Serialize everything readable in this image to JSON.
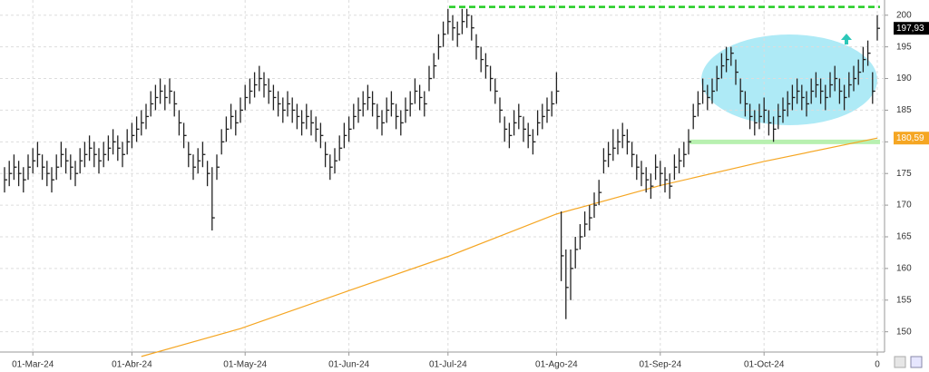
{
  "chart_data": {
    "type": "ohlc",
    "categories": [
      null,
      null,
      null,
      null,
      null,
      null,
      "01-Mar-24",
      null,
      null,
      null,
      null,
      null,
      null,
      null,
      null,
      null,
      null,
      null,
      null,
      null,
      null,
      null,
      null,
      null,
      null,
      null,
      null,
      "01-Abr-24",
      null,
      null,
      null,
      null,
      null,
      null,
      null,
      null,
      null,
      null,
      null,
      null,
      null,
      null,
      null,
      null,
      null,
      null,
      null,
      null,
      null,
      null,
      null,
      "01-May-24",
      null,
      null,
      null,
      null,
      null,
      null,
      null,
      null,
      null,
      null,
      null,
      null,
      null,
      null,
      null,
      null,
      null,
      null,
      null,
      null,
      null,
      "01-Jun-24",
      null,
      null,
      null,
      null,
      null,
      null,
      null,
      null,
      null,
      null,
      null,
      null,
      null,
      null,
      null,
      null,
      null,
      null,
      null,
      null,
      "01-Jul-24",
      null,
      null,
      null,
      null,
      null,
      null,
      null,
      null,
      null,
      null,
      null,
      null,
      null,
      null,
      null,
      null,
      null,
      null,
      null,
      null,
      null,
      null,
      "01-Ago-24",
      null,
      null,
      null,
      null,
      null,
      null,
      null,
      null,
      null,
      null,
      null,
      null,
      null,
      null,
      null,
      null,
      null,
      null,
      null,
      null,
      null,
      "01-Sep-24",
      null,
      null,
      null,
      null,
      null,
      null,
      null,
      null,
      null,
      null,
      null,
      null,
      null,
      null,
      null,
      null,
      null,
      null,
      null,
      null,
      null,
      "01-Oct-24",
      null,
      null,
      null,
      null,
      null,
      null,
      null,
      null,
      null,
      null,
      null,
      null,
      null,
      null,
      null,
      null,
      null,
      null,
      null,
      null,
      null,
      null,
      null,
      "0"
    ],
    "high": [
      176,
      177,
      178,
      177,
      176,
      178,
      179,
      180,
      178,
      177,
      176,
      178,
      180,
      179,
      178,
      177,
      179,
      180,
      181,
      180,
      179,
      180,
      181,
      182,
      181,
      180,
      182,
      183,
      184,
      185,
      186,
      188,
      189,
      190,
      189,
      190,
      188,
      185,
      183,
      180,
      178,
      179,
      180,
      177,
      176,
      178,
      182,
      184,
      186,
      185,
      187,
      189,
      190,
      191,
      192,
      191,
      190,
      189,
      188,
      187,
      188,
      187,
      186,
      185,
      186,
      185,
      184,
      183,
      180,
      178,
      179,
      181,
      183,
      184,
      186,
      187,
      188,
      189,
      188,
      186,
      185,
      187,
      188,
      186,
      185,
      187,
      188,
      190,
      189,
      188,
      192,
      194,
      197,
      199,
      201,
      200,
      199,
      201,
      201,
      200,
      197,
      195,
      194,
      192,
      190,
      187,
      184,
      183,
      185,
      186,
      184,
      183,
      182,
      185,
      186,
      187,
      188,
      191,
      169,
      163,
      163,
      165,
      167,
      169,
      170,
      172,
      174,
      179,
      180,
      182,
      182,
      183,
      182,
      180,
      178,
      177,
      176,
      175,
      178,
      177,
      176,
      175,
      178,
      179,
      180,
      182,
      186,
      188,
      190,
      189,
      190,
      192,
      194,
      195,
      195,
      193,
      190,
      188,
      186,
      185,
      186,
      187,
      185,
      184,
      186,
      187,
      188,
      189,
      190,
      189,
      188,
      190,
      191,
      190,
      189,
      191,
      192,
      190,
      189,
      191,
      192,
      193,
      195,
      196,
      191,
      200
    ],
    "low": [
      172,
      173,
      174,
      173,
      172,
      174,
      175,
      176,
      174,
      173,
      172,
      174,
      176,
      175,
      174,
      173,
      175,
      176,
      177,
      176,
      175,
      176,
      177,
      178,
      177,
      176,
      178,
      179,
      180,
      181,
      182,
      184,
      185,
      186,
      185,
      186,
      184,
      181,
      179,
      176,
      174,
      175,
      176,
      173,
      166,
      174,
      178,
      180,
      182,
      181,
      183,
      185,
      186,
      187,
      188,
      187,
      186,
      185,
      184,
      183,
      184,
      183,
      182,
      181,
      182,
      181,
      180,
      179,
      176,
      174,
      175,
      177,
      179,
      180,
      182,
      183,
      184,
      185,
      184,
      182,
      181,
      183,
      184,
      182,
      181,
      183,
      184,
      186,
      185,
      184,
      188,
      190,
      193,
      195,
      197,
      196,
      195,
      197,
      198,
      196,
      193,
      191,
      190,
      188,
      186,
      183,
      180,
      179,
      181,
      182,
      180,
      179,
      178,
      181,
      182,
      183,
      184,
      186,
      158,
      152,
      155,
      160,
      163,
      165,
      166,
      168,
      170,
      175,
      176,
      177,
      178,
      179,
      178,
      176,
      174,
      173,
      172,
      171,
      174,
      173,
      172,
      171,
      174,
      175,
      176,
      178,
      182,
      184,
      186,
      185,
      186,
      188,
      190,
      191,
      192,
      189,
      186,
      184,
      182,
      181,
      182,
      183,
      181,
      180,
      182,
      183,
      184,
      185,
      186,
      185,
      184,
      186,
      187,
      186,
      185,
      187,
      188,
      186,
      185,
      187,
      188,
      189,
      191,
      192,
      186,
      196
    ],
    "close": [
      174,
      175,
      176,
      175,
      174,
      176,
      177,
      178,
      176,
      175,
      174,
      176,
      178,
      177,
      176,
      175,
      177,
      178,
      179,
      178,
      177,
      178,
      179,
      180,
      179,
      178,
      180,
      181,
      182,
      183,
      184,
      186,
      187,
      188,
      187,
      188,
      186,
      183,
      181,
      178,
      176,
      177,
      178,
      175,
      168,
      176,
      180,
      182,
      184,
      183,
      185,
      187,
      188,
      189,
      190,
      189,
      188,
      187,
      186,
      185,
      186,
      185,
      184,
      183,
      184,
      183,
      182,
      181,
      178,
      176,
      177,
      179,
      181,
      182,
      184,
      185,
      186,
      187,
      186,
      184,
      183,
      185,
      186,
      184,
      183,
      185,
      186,
      188,
      187,
      186,
      190,
      192,
      195,
      197,
      199,
      198,
      197,
      199,
      200,
      198,
      195,
      193,
      192,
      190,
      188,
      185,
      182,
      181,
      183,
      184,
      182,
      181,
      180,
      183,
      184,
      185,
      186,
      188,
      162,
      157,
      160,
      163,
      165,
      167,
      168,
      170,
      172,
      177,
      178,
      179,
      180,
      181,
      180,
      178,
      176,
      175,
      174,
      173,
      176,
      175,
      174,
      173,
      176,
      177,
      178,
      180,
      184,
      186,
      188,
      187,
      188,
      190,
      192,
      193,
      194,
      191,
      188,
      186,
      184,
      183,
      184,
      185,
      183,
      182,
      184,
      185,
      186,
      187,
      188,
      187,
      186,
      188,
      189,
      188,
      187,
      189,
      190,
      188,
      187,
      189,
      190,
      191,
      193,
      194,
      188,
      197.93
    ],
    "close_label": {
      "value": 197.93,
      "label": "197,93"
    },
    "color": "#222222",
    "ma": {
      "color": "#f5a623",
      "x": [
        29,
        50,
        73,
        94,
        117,
        139,
        161,
        185
      ],
      "values": [
        146.1,
        150.5,
        156.5,
        161.9,
        168.6,
        173.1,
        176.9,
        180.59
      ],
      "last_label": {
        "value": 180.59,
        "label": "180,59"
      }
    },
    "levels": [
      {
        "value": 201.3,
        "color": "#22cc22"
      },
      {
        "value": 180,
        "color": "#b8f0b0"
      }
    ],
    "ylim": [
      146.8,
      202.4
    ],
    "yticks": [
      150,
      155,
      160,
      165,
      170,
      175,
      180,
      185,
      190,
      195,
      200
    ],
    "grid": true
  }
}
